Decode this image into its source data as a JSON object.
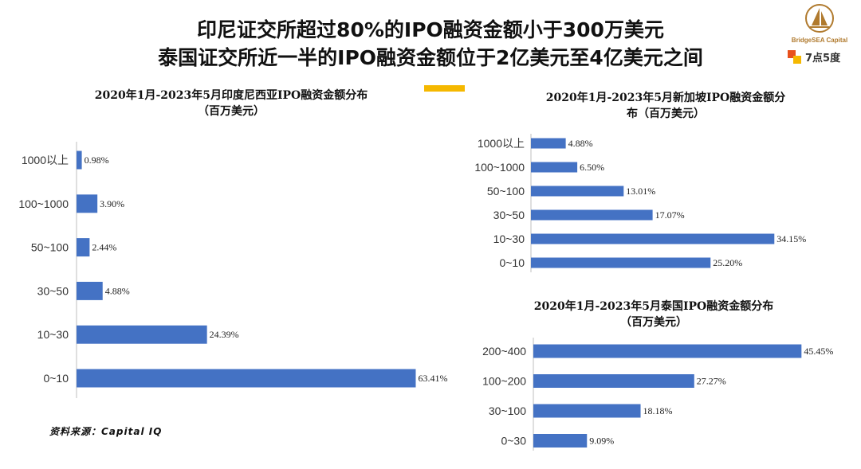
{
  "headline": {
    "line1": "印尼证交所超过80%的IPO融资金额小于300万美元",
    "line2": "泰国证交所近一半的IPO融资金额位于2亿美元至4亿美元之间"
  },
  "branding": {
    "logo1_text": "BridgeSEA Capital",
    "logo2_text": "7点5度"
  },
  "source_note": "资料来源：Capital IQ",
  "colors": {
    "bar": "#4472c4",
    "accent": "#f5b800",
    "logo_gold": "#b07a2e"
  },
  "chart_data": [
    {
      "type": "bar",
      "orientation": "horizontal",
      "title_line1": "2020年1月-2023年5月印度尼西亚IPO融资金额分布",
      "title_line2": "（百万美元）",
      "categories": [
        "1000以上",
        "100~1000",
        "50~100",
        "30~50",
        "10~30",
        "0~10"
      ],
      "values": [
        0.98,
        3.9,
        2.44,
        4.88,
        24.39,
        63.41
      ],
      "value_labels": [
        "0.98%",
        "3.90%",
        "2.44%",
        "4.88%",
        "24.39%",
        "63.41%"
      ],
      "unit": "%"
    },
    {
      "type": "bar",
      "orientation": "horizontal",
      "title_line1": "2020年1月-2023年5月新加坡IPO融资金额分",
      "title_line2": "布（百万美元）",
      "categories": [
        "1000以上",
        "100~1000",
        "50~100",
        "30~50",
        "10~30",
        "0~10"
      ],
      "values": [
        4.88,
        6.5,
        13.01,
        17.07,
        34.15,
        25.2
      ],
      "value_labels": [
        "4.88%",
        "6.50%",
        "13.01%",
        "17.07%",
        "34.15%",
        "25.20%"
      ],
      "unit": "%"
    },
    {
      "type": "bar",
      "orientation": "horizontal",
      "title_line1": "2020年1月-2023年5月泰国IPO融资金额分布",
      "title_line2": "（百万美元）",
      "categories": [
        "200~400",
        "100~200",
        "30~100",
        "0~30"
      ],
      "values": [
        45.45,
        27.27,
        18.18,
        9.09
      ],
      "value_labels": [
        "45.45%",
        "27.27%",
        "18.18%",
        "9.09%"
      ],
      "unit": "%"
    }
  ]
}
